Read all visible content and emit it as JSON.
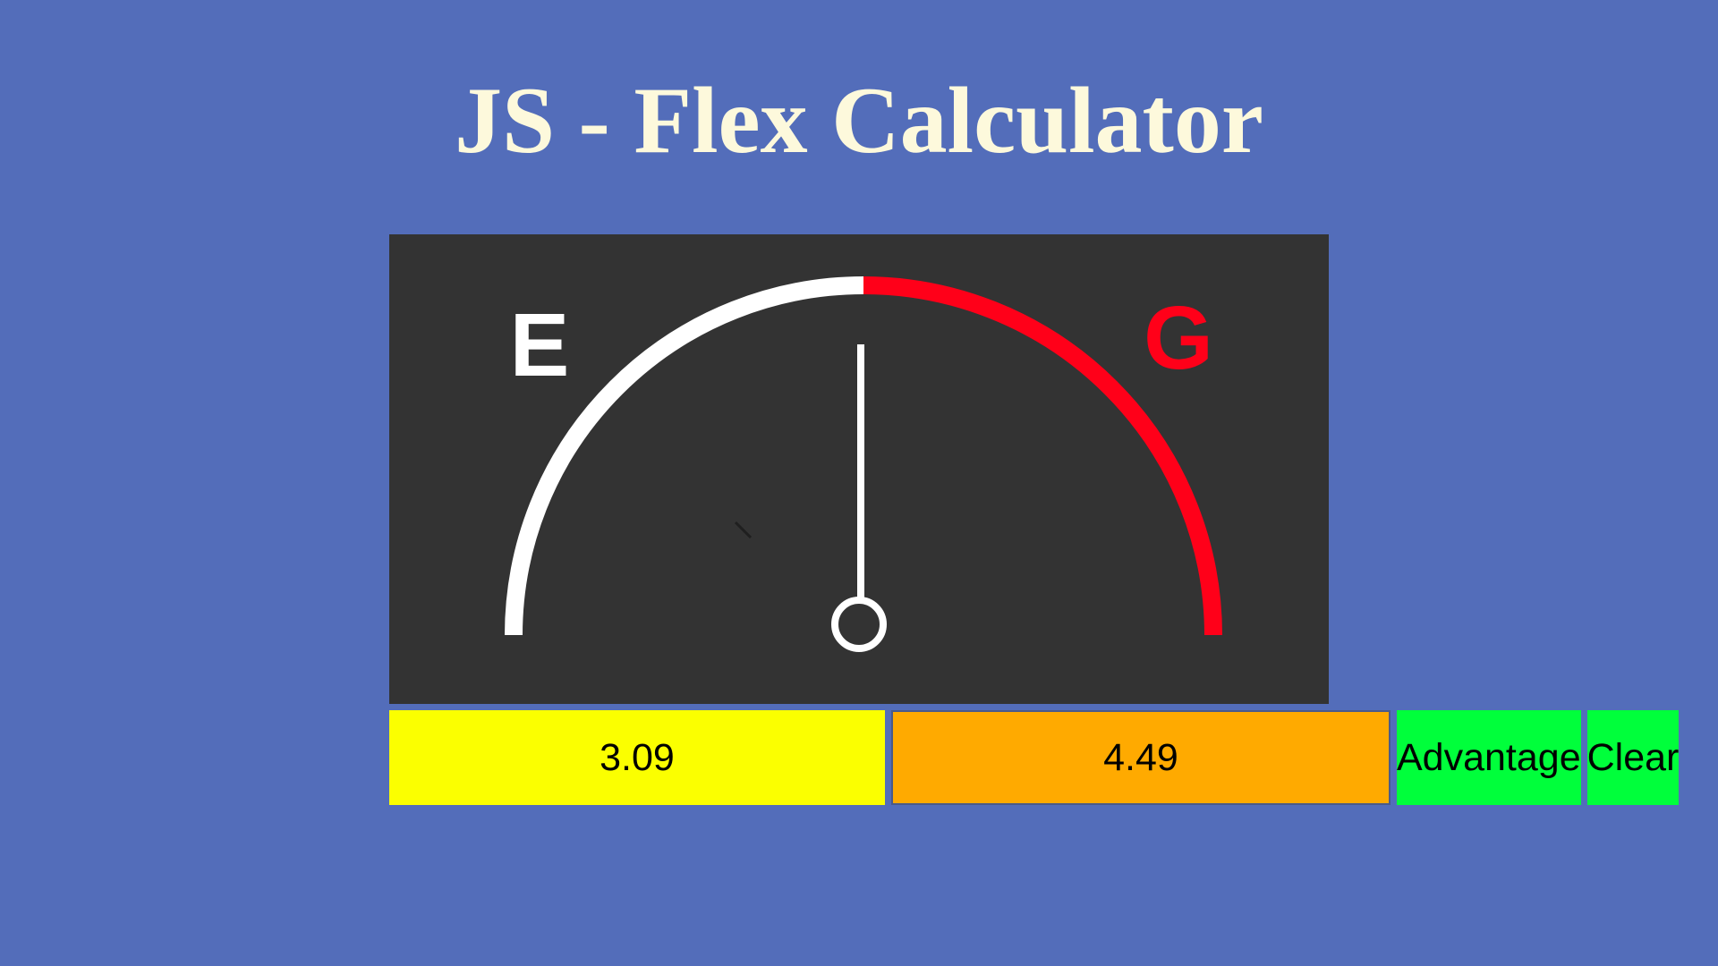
{
  "header": {
    "title": "JS - Flex Calculator"
  },
  "gauge": {
    "label_left": "E",
    "label_right": "G",
    "needle_fraction": 0.5,
    "colors": {
      "background": "#333333",
      "arc_left": "#ffffff",
      "arc_right": "#ff0019",
      "label_left": "#ffffff",
      "label_right": "#ff0019",
      "needle": "#ffffff"
    }
  },
  "controls": {
    "input_left": {
      "value": "3.09"
    },
    "input_right": {
      "value": "4.49"
    },
    "advantage_label": "Advantage",
    "clear_label": "Clear"
  },
  "colors": {
    "page_background": "#536dba",
    "title": "#fdf9dc",
    "input_left": "#fbff00",
    "input_right": "#ffaa00",
    "buttons": "#00ff3b"
  }
}
